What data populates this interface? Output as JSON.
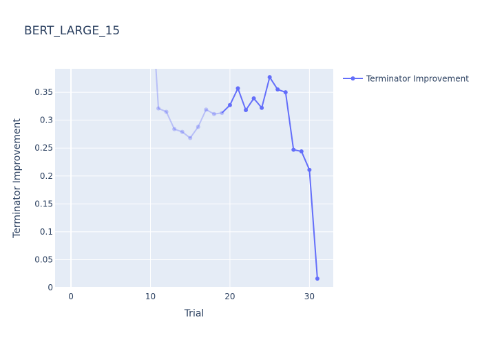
{
  "chart_data": {
    "type": "line",
    "title": "BERT_LARGE_15",
    "xlabel": "Trial",
    "ylabel": "Terminator Improvement",
    "xlim": [
      -2,
      33
    ],
    "ylim": [
      0,
      0.392
    ],
    "xticks": [
      0,
      10,
      20,
      30
    ],
    "yticks": [
      0,
      0.05,
      0.1,
      0.15,
      0.2,
      0.25,
      0.3,
      0.35
    ],
    "ytick_labels": [
      "0",
      "0.05",
      "0.1",
      "0.15",
      "0.2",
      "0.25",
      "0.3",
      "0.35"
    ],
    "grid": true,
    "legend_position": "top-right",
    "series": [
      {
        "name": "Terminator Improvement",
        "color": "#636efa",
        "faded_opacity": 0.35,
        "x": [
          10,
          11,
          12,
          13,
          14,
          15,
          16,
          17,
          18,
          19,
          20,
          21,
          22,
          23,
          24,
          25,
          26,
          27,
          28,
          29,
          30,
          31
        ],
        "y": [
          0.55,
          0.321,
          0.315,
          0.284,
          0.279,
          0.268,
          0.288,
          0.319,
          0.311,
          0.313,
          0.327,
          0.357,
          0.318,
          0.339,
          0.322,
          0.377,
          0.355,
          0.35,
          0.247,
          0.244,
          0.211,
          0.016
        ],
        "faded_until_x": 19
      }
    ]
  }
}
